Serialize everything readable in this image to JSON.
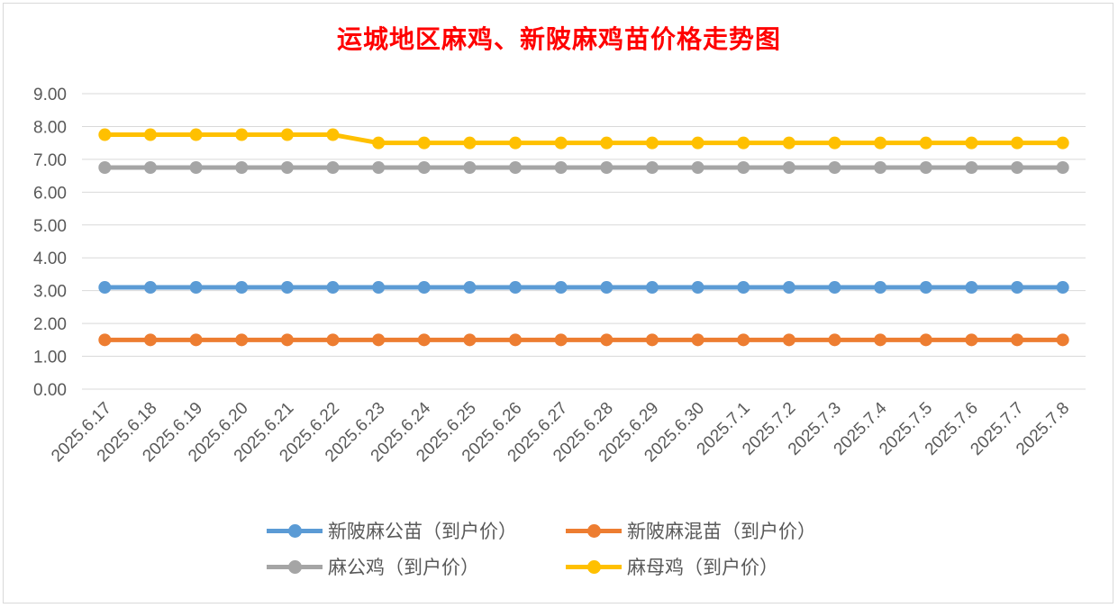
{
  "chart_data": {
    "type": "line",
    "title": "运城地区麻鸡、新陂麻鸡苗价格走势图",
    "xlabel": "",
    "ylabel": "",
    "ylim": [
      0,
      9
    ],
    "yticks": [
      "0.00",
      "1.00",
      "2.00",
      "3.00",
      "4.00",
      "5.00",
      "6.00",
      "7.00",
      "8.00",
      "9.00"
    ],
    "grid": true,
    "legend_position": "bottom",
    "categories": [
      "2025.6.17",
      "2025.6.18",
      "2025.6.19",
      "2025.6.20",
      "2025.6.21",
      "2025.6.22",
      "2025.6.23",
      "2025.6.24",
      "2025.6.25",
      "2025.6.26",
      "2025.6.27",
      "2025.6.28",
      "2025.6.29",
      "2025.6.30",
      "2025.7.1",
      "2025.7.2",
      "2025.7.3",
      "2025.7.4",
      "2025.7.5",
      "2025.7.6",
      "2025.7.7",
      "2025.7.8"
    ],
    "series": [
      {
        "name": "新陂麻公苗（到户价）",
        "color": "#5b9bd5",
        "values": [
          3.1,
          3.1,
          3.1,
          3.1,
          3.1,
          3.1,
          3.1,
          3.1,
          3.1,
          3.1,
          3.1,
          3.1,
          3.1,
          3.1,
          3.1,
          3.1,
          3.1,
          3.1,
          3.1,
          3.1,
          3.1,
          3.1
        ]
      },
      {
        "name": "新陂麻混苗（到户价）",
        "color": "#ed7d31",
        "values": [
          1.5,
          1.5,
          1.5,
          1.5,
          1.5,
          1.5,
          1.5,
          1.5,
          1.5,
          1.5,
          1.5,
          1.5,
          1.5,
          1.5,
          1.5,
          1.5,
          1.5,
          1.5,
          1.5,
          1.5,
          1.5,
          1.5
        ]
      },
      {
        "name": "麻公鸡（到户价）",
        "color": "#a5a5a5",
        "values": [
          6.75,
          6.75,
          6.75,
          6.75,
          6.75,
          6.75,
          6.75,
          6.75,
          6.75,
          6.75,
          6.75,
          6.75,
          6.75,
          6.75,
          6.75,
          6.75,
          6.75,
          6.75,
          6.75,
          6.75,
          6.75,
          6.75
        ]
      },
      {
        "name": "麻母鸡（到户价）",
        "color": "#ffc000",
        "values": [
          7.75,
          7.75,
          7.75,
          7.75,
          7.75,
          7.75,
          7.5,
          7.5,
          7.5,
          7.5,
          7.5,
          7.5,
          7.5,
          7.5,
          7.5,
          7.5,
          7.5,
          7.5,
          7.5,
          7.5,
          7.5,
          7.5
        ]
      }
    ]
  }
}
